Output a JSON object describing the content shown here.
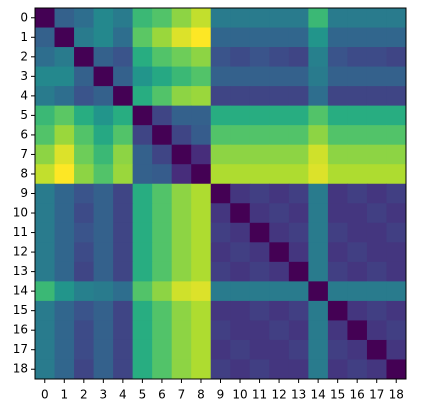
{
  "chart_data": {
    "type": "heatmap",
    "colormap": "viridis",
    "xticks": [
      0,
      1,
      2,
      3,
      4,
      5,
      6,
      7,
      8,
      9,
      10,
      11,
      12,
      13,
      14,
      15,
      16,
      17,
      18
    ],
    "yticks": [
      0,
      1,
      2,
      3,
      4,
      5,
      6,
      7,
      8,
      9,
      10,
      11,
      12,
      13,
      14,
      15,
      16,
      17,
      18
    ],
    "z": [
      [
        0,
        0.3,
        0.35,
        0.45,
        0.4,
        0.65,
        0.7,
        0.8,
        0.88,
        0.4,
        0.4,
        0.4,
        0.4,
        0.4,
        0.65,
        0.4,
        0.4,
        0.4,
        0.4
      ],
      [
        0.3,
        0,
        0.4,
        0.45,
        0.35,
        0.72,
        0.82,
        0.92,
        0.97,
        0.32,
        0.32,
        0.32,
        0.32,
        0.32,
        0.5,
        0.32,
        0.32,
        0.32,
        0.32
      ],
      [
        0.35,
        0.4,
        0,
        0.3,
        0.25,
        0.6,
        0.7,
        0.75,
        0.8,
        0.25,
        0.22,
        0.25,
        0.22,
        0.2,
        0.42,
        0.25,
        0.22,
        0.22,
        0.2
      ],
      [
        0.45,
        0.45,
        0.3,
        0,
        0.3,
        0.5,
        0.58,
        0.65,
        0.7,
        0.3,
        0.3,
        0.3,
        0.3,
        0.3,
        0.4,
        0.3,
        0.3,
        0.3,
        0.3
      ],
      [
        0.4,
        0.35,
        0.25,
        0.3,
        0,
        0.6,
        0.7,
        0.8,
        0.82,
        0.2,
        0.2,
        0.2,
        0.2,
        0.2,
        0.35,
        0.2,
        0.2,
        0.2,
        0.2
      ],
      [
        0.65,
        0.72,
        0.6,
        0.5,
        0.6,
        0,
        0.2,
        0.3,
        0.3,
        0.6,
        0.6,
        0.6,
        0.6,
        0.6,
        0.7,
        0.6,
        0.6,
        0.6,
        0.6
      ],
      [
        0.7,
        0.82,
        0.7,
        0.58,
        0.7,
        0.2,
        0,
        0.2,
        0.28,
        0.7,
        0.7,
        0.7,
        0.7,
        0.7,
        0.8,
        0.7,
        0.7,
        0.7,
        0.7
      ],
      [
        0.8,
        0.92,
        0.75,
        0.65,
        0.8,
        0.3,
        0.2,
        0,
        0.12,
        0.8,
        0.8,
        0.8,
        0.8,
        0.8,
        0.9,
        0.8,
        0.8,
        0.8,
        0.8
      ],
      [
        0.88,
        0.97,
        0.8,
        0.7,
        0.82,
        0.3,
        0.28,
        0.12,
        0,
        0.85,
        0.85,
        0.85,
        0.85,
        0.85,
        0.92,
        0.85,
        0.85,
        0.85,
        0.85
      ],
      [
        0.4,
        0.32,
        0.25,
        0.3,
        0.2,
        0.6,
        0.7,
        0.8,
        0.85,
        0,
        0.15,
        0.18,
        0.15,
        0.18,
        0.4,
        0.15,
        0.18,
        0.15,
        0.18
      ],
      [
        0.4,
        0.32,
        0.22,
        0.3,
        0.2,
        0.6,
        0.7,
        0.8,
        0.85,
        0.15,
        0,
        0.15,
        0.18,
        0.15,
        0.4,
        0.15,
        0.15,
        0.18,
        0.15
      ],
      [
        0.4,
        0.32,
        0.25,
        0.3,
        0.2,
        0.6,
        0.7,
        0.8,
        0.85,
        0.18,
        0.15,
        0,
        0.15,
        0.18,
        0.4,
        0.18,
        0.15,
        0.15,
        0.18
      ],
      [
        0.4,
        0.32,
        0.22,
        0.3,
        0.2,
        0.6,
        0.7,
        0.8,
        0.85,
        0.15,
        0.18,
        0.15,
        0,
        0.15,
        0.4,
        0.15,
        0.18,
        0.15,
        0.15
      ],
      [
        0.4,
        0.32,
        0.2,
        0.3,
        0.2,
        0.6,
        0.7,
        0.8,
        0.85,
        0.18,
        0.15,
        0.18,
        0.15,
        0,
        0.4,
        0.18,
        0.15,
        0.18,
        0.15
      ],
      [
        0.65,
        0.5,
        0.42,
        0.4,
        0.35,
        0.7,
        0.8,
        0.9,
        0.92,
        0.4,
        0.4,
        0.4,
        0.4,
        0.4,
        0,
        0.4,
        0.4,
        0.4,
        0.4
      ],
      [
        0.4,
        0.32,
        0.25,
        0.3,
        0.2,
        0.6,
        0.7,
        0.8,
        0.85,
        0.15,
        0.15,
        0.18,
        0.15,
        0.18,
        0.4,
        0,
        0.15,
        0.18,
        0.15
      ],
      [
        0.4,
        0.32,
        0.22,
        0.3,
        0.2,
        0.6,
        0.7,
        0.8,
        0.85,
        0.18,
        0.15,
        0.15,
        0.18,
        0.15,
        0.4,
        0.15,
        0,
        0.15,
        0.18
      ],
      [
        0.4,
        0.32,
        0.22,
        0.3,
        0.2,
        0.6,
        0.7,
        0.8,
        0.85,
        0.15,
        0.18,
        0.15,
        0.15,
        0.18,
        0.4,
        0.18,
        0.15,
        0,
        0.15
      ],
      [
        0.4,
        0.32,
        0.2,
        0.3,
        0.2,
        0.6,
        0.7,
        0.8,
        0.85,
        0.18,
        0.15,
        0.18,
        0.15,
        0.15,
        0.4,
        0.15,
        0.18,
        0.15,
        0
      ]
    ]
  }
}
